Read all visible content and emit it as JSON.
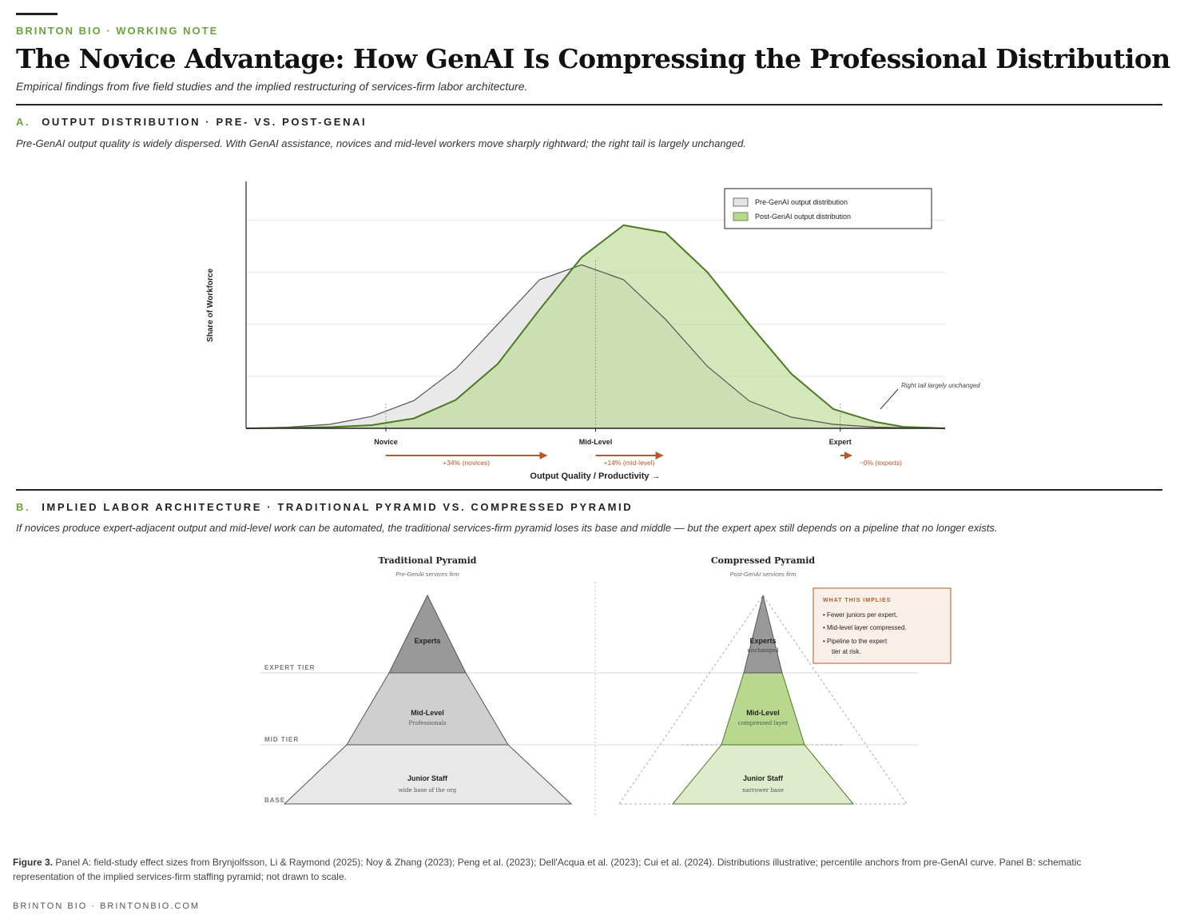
{
  "header": {
    "kicker": "BRINTON BIO · WORKING NOTE",
    "title": "The Novice Advantage: How GenAI Is Compressing the Professional Distribution",
    "subtitle": "Empirical findings from five field studies and the implied restructuring of services-firm labor architecture."
  },
  "panel_a": {
    "letter": "A.",
    "heading": "OUTPUT DISTRIBUTION · PRE- VS. POST-GENAI",
    "description": "Pre-GenAI output quality is widely dispersed. With GenAI assistance, novices and mid-level workers move sharply rightward; the right tail is largely unchanged."
  },
  "panel_b": {
    "letter": "B.",
    "heading": "IMPLIED LABOR ARCHITECTURE · TRADITIONAL PYRAMID VS. COMPRESSED PYRAMID",
    "description": "If novices produce expert-adjacent output and mid-level work can be automated, the traditional services-firm pyramid loses its base and middle — but the expert apex still depends on a pipeline that no longer exists.",
    "tiers": [
      "EXPERT TIER",
      "MID TIER",
      "BASE"
    ],
    "traditional": {
      "title": "Traditional Pyramid",
      "subtitle": "Pre-GenAI services firm",
      "experts": "Experts",
      "mid": "Mid-Level",
      "mid_sub": "Professionals",
      "junior": "Junior Staff",
      "junior_sub": "wide base of the org"
    },
    "compressed": {
      "title": "Compressed Pyramid",
      "subtitle": "Post-GenAI services firm",
      "experts": "Experts",
      "experts_sub": "unchanged",
      "mid": "Mid-Level",
      "mid_sub": "compressed layer",
      "junior": "Junior Staff",
      "junior_sub": "narrower base"
    },
    "implications": {
      "heading": "WHAT THIS IMPLIES",
      "items": [
        "• Fewer juniors per expert.",
        "• Mid-level layer compressed.",
        "• Pipeline to the expert",
        "tier at risk."
      ]
    }
  },
  "chart_data": {
    "type": "area",
    "title": "Output Distribution · Pre- vs. Post-GenAI",
    "xlabel": "Output Quality / Productivity →",
    "ylabel": "Share of Workforce",
    "xlim": [
      0,
      1
    ],
    "ylim": [
      0,
      1
    ],
    "x": [
      0,
      0.06,
      0.12,
      0.18,
      0.24,
      0.3,
      0.36,
      0.42,
      0.48,
      0.54,
      0.6,
      0.66,
      0.72,
      0.78,
      0.84,
      0.9,
      0.94,
      1.0
    ],
    "series": [
      {
        "name": "Pre-GenAI output distribution",
        "color": "#e8e8e8",
        "stroke": "#555555",
        "values": [
          0,
          0.005,
          0.016,
          0.048,
          0.112,
          0.24,
          0.42,
          0.6,
          0.66,
          0.6,
          0.44,
          0.25,
          0.11,
          0.045,
          0.016,
          0.005,
          0.002,
          0
        ]
      },
      {
        "name": "Post-GenAI output distribution",
        "color": "#b9d88f",
        "stroke": "#4c7a22",
        "values": [
          0,
          0.002,
          0.005,
          0.013,
          0.04,
          0.115,
          0.26,
          0.48,
          0.69,
          0.82,
          0.79,
          0.63,
          0.42,
          0.22,
          0.078,
          0.026,
          0.006,
          0
        ]
      }
    ],
    "legend": "top-right",
    "x_ticks": [
      {
        "label": "Novice",
        "x": 0.2
      },
      {
        "label": "Mid-Level",
        "x": 0.5
      },
      {
        "label": "Expert",
        "x": 0.85
      }
    ],
    "effects": [
      {
        "label": "+34% (novices)",
        "from": 0.2,
        "to": 0.43
      },
      {
        "label": "+14% (mid-level)",
        "from": 0.5,
        "to": 0.596
      },
      {
        "label": "~0% (experts)",
        "from": 0.85,
        "to": 0.866
      }
    ],
    "annotation": "Right tail largely unchanged"
  },
  "caption": {
    "label": "Figure 3.",
    "text": " Panel A: field-study effect sizes from Brynjolfsson, Li & Raymond (2025); Noy & Zhang (2023); Peng et al. (2023); Dell'Acqua et al. (2023); Cui et al. (2024). Distributions illustrative; percentile anchors from pre-GenAI curve. Panel B: schematic representation of the implied services-firm staffing pyramid; not drawn to scale."
  },
  "footer": "BRINTON BIO · BRINTONBIO.COM",
  "colors": {
    "accent_green": "#6aa33a",
    "effect_arrow": "#b5582a"
  }
}
